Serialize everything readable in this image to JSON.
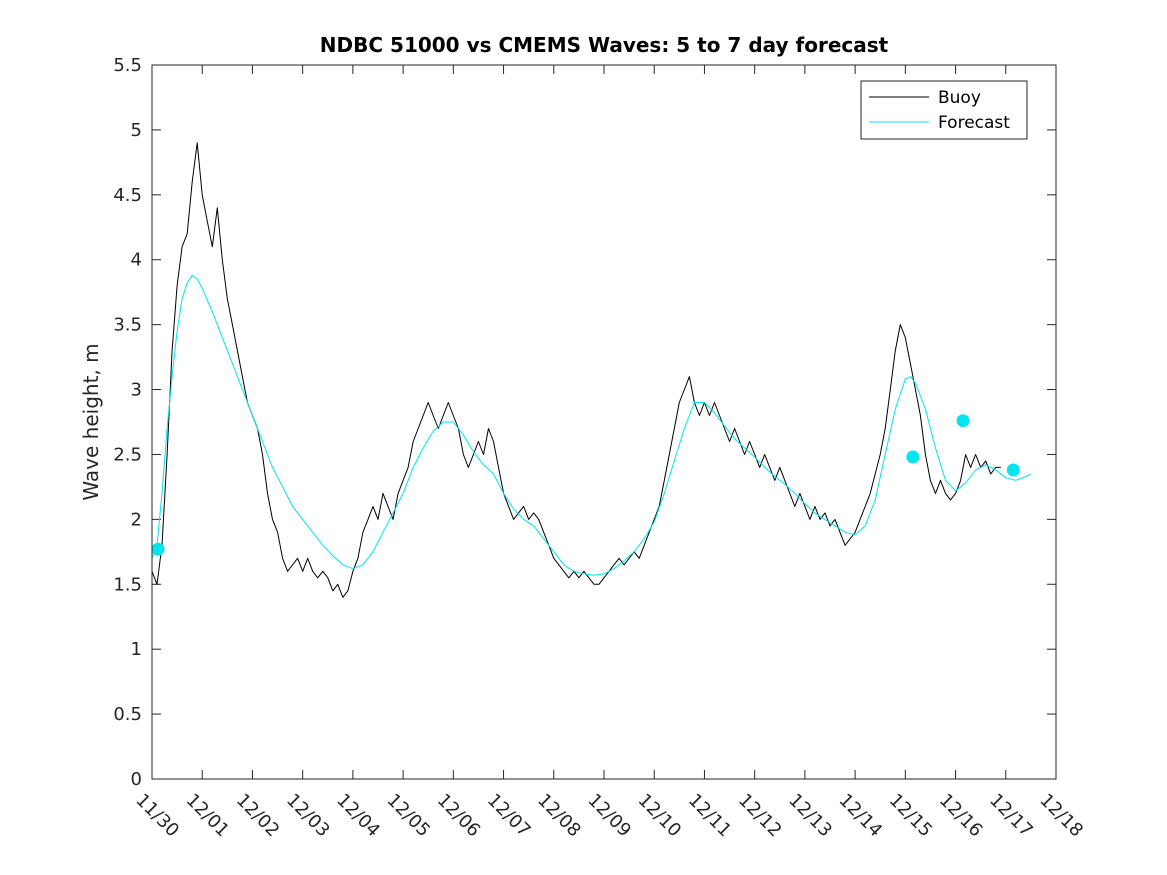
{
  "chart_data": {
    "type": "line",
    "title": "NDBC 51000 vs CMEMS Waves: 5 to 7 day forecast",
    "ylabel": "Wave height, m",
    "xlabel": "",
    "xlim": [
      "11/30",
      "12/18"
    ],
    "ylim": [
      0,
      5.5
    ],
    "x_ticks": [
      "11/30",
      "12/01",
      "12/02",
      "12/03",
      "12/04",
      "12/05",
      "12/06",
      "12/07",
      "12/08",
      "12/09",
      "12/10",
      "12/11",
      "12/12",
      "12/13",
      "12/14",
      "12/15",
      "12/16",
      "12/17",
      "12/18"
    ],
    "y_ticks": [
      "0",
      "0.5",
      "1",
      "1.5",
      "2",
      "2.5",
      "3",
      "3.5",
      "4",
      "4.5",
      "5",
      "5.5"
    ],
    "grid": false,
    "legend": {
      "placement": "top-right",
      "entries": [
        "Buoy",
        "Forecast"
      ]
    },
    "series": [
      {
        "name": "Buoy",
        "color": "#000000",
        "points": [
          [
            0.0,
            1.6
          ],
          [
            0.1,
            1.5
          ],
          [
            0.2,
            1.8
          ],
          [
            0.3,
            2.5
          ],
          [
            0.4,
            3.3
          ],
          [
            0.5,
            3.8
          ],
          [
            0.6,
            4.1
          ],
          [
            0.7,
            4.2
          ],
          [
            0.8,
            4.6
          ],
          [
            0.9,
            4.9
          ],
          [
            1.0,
            4.5
          ],
          [
            1.1,
            4.3
          ],
          [
            1.2,
            4.1
          ],
          [
            1.3,
            4.4
          ],
          [
            1.4,
            4.0
          ],
          [
            1.5,
            3.7
          ],
          [
            1.6,
            3.5
          ],
          [
            1.7,
            3.3
          ],
          [
            1.8,
            3.1
          ],
          [
            1.9,
            2.9
          ],
          [
            2.0,
            2.8
          ],
          [
            2.1,
            2.7
          ],
          [
            2.2,
            2.5
          ],
          [
            2.3,
            2.2
          ],
          [
            2.4,
            2.0
          ],
          [
            2.5,
            1.9
          ],
          [
            2.6,
            1.7
          ],
          [
            2.7,
            1.6
          ],
          [
            2.8,
            1.65
          ],
          [
            2.9,
            1.7
          ],
          [
            3.0,
            1.6
          ],
          [
            3.1,
            1.7
          ],
          [
            3.2,
            1.6
          ],
          [
            3.3,
            1.55
          ],
          [
            3.4,
            1.6
          ],
          [
            3.5,
            1.55
          ],
          [
            3.6,
            1.45
          ],
          [
            3.7,
            1.5
          ],
          [
            3.8,
            1.4
          ],
          [
            3.9,
            1.45
          ],
          [
            4.0,
            1.6
          ],
          [
            4.1,
            1.7
          ],
          [
            4.2,
            1.9
          ],
          [
            4.3,
            2.0
          ],
          [
            4.4,
            2.1
          ],
          [
            4.5,
            2.0
          ],
          [
            4.6,
            2.2
          ],
          [
            4.7,
            2.1
          ],
          [
            4.8,
            2.0
          ],
          [
            4.9,
            2.2
          ],
          [
            5.0,
            2.3
          ],
          [
            5.1,
            2.4
          ],
          [
            5.2,
            2.6
          ],
          [
            5.3,
            2.7
          ],
          [
            5.4,
            2.8
          ],
          [
            5.5,
            2.9
          ],
          [
            5.6,
            2.8
          ],
          [
            5.7,
            2.7
          ],
          [
            5.8,
            2.8
          ],
          [
            5.9,
            2.9
          ],
          [
            6.0,
            2.8
          ],
          [
            6.1,
            2.7
          ],
          [
            6.2,
            2.5
          ],
          [
            6.3,
            2.4
          ],
          [
            6.4,
            2.5
          ],
          [
            6.5,
            2.6
          ],
          [
            6.6,
            2.5
          ],
          [
            6.7,
            2.7
          ],
          [
            6.8,
            2.6
          ],
          [
            6.9,
            2.4
          ],
          [
            7.0,
            2.2
          ],
          [
            7.1,
            2.1
          ],
          [
            7.2,
            2.0
          ],
          [
            7.3,
            2.05
          ],
          [
            7.4,
            2.1
          ],
          [
            7.5,
            2.0
          ],
          [
            7.6,
            2.05
          ],
          [
            7.7,
            2.0
          ],
          [
            7.8,
            1.9
          ],
          [
            7.9,
            1.8
          ],
          [
            8.0,
            1.7
          ],
          [
            8.1,
            1.65
          ],
          [
            8.2,
            1.6
          ],
          [
            8.3,
            1.55
          ],
          [
            8.4,
            1.6
          ],
          [
            8.5,
            1.55
          ],
          [
            8.6,
            1.6
          ],
          [
            8.7,
            1.55
          ],
          [
            8.8,
            1.5
          ],
          [
            8.9,
            1.5
          ],
          [
            9.0,
            1.55
          ],
          [
            9.1,
            1.6
          ],
          [
            9.2,
            1.65
          ],
          [
            9.3,
            1.7
          ],
          [
            9.4,
            1.65
          ],
          [
            9.5,
            1.7
          ],
          [
            9.6,
            1.75
          ],
          [
            9.7,
            1.7
          ],
          [
            9.8,
            1.8
          ],
          [
            9.9,
            1.9
          ],
          [
            10.0,
            2.0
          ],
          [
            10.1,
            2.1
          ],
          [
            10.2,
            2.3
          ],
          [
            10.3,
            2.5
          ],
          [
            10.4,
            2.7
          ],
          [
            10.5,
            2.9
          ],
          [
            10.6,
            3.0
          ],
          [
            10.7,
            3.1
          ],
          [
            10.8,
            2.9
          ],
          [
            10.9,
            2.8
          ],
          [
            11.0,
            2.9
          ],
          [
            11.1,
            2.8
          ],
          [
            11.2,
            2.9
          ],
          [
            11.3,
            2.8
          ],
          [
            11.4,
            2.7
          ],
          [
            11.5,
            2.6
          ],
          [
            11.6,
            2.7
          ],
          [
            11.7,
            2.6
          ],
          [
            11.8,
            2.5
          ],
          [
            11.9,
            2.6
          ],
          [
            12.0,
            2.5
          ],
          [
            12.1,
            2.4
          ],
          [
            12.2,
            2.5
          ],
          [
            12.3,
            2.4
          ],
          [
            12.4,
            2.3
          ],
          [
            12.5,
            2.4
          ],
          [
            12.6,
            2.3
          ],
          [
            12.7,
            2.2
          ],
          [
            12.8,
            2.1
          ],
          [
            12.9,
            2.2
          ],
          [
            13.0,
            2.1
          ],
          [
            13.1,
            2.0
          ],
          [
            13.2,
            2.1
          ],
          [
            13.3,
            2.0
          ],
          [
            13.4,
            2.05
          ],
          [
            13.5,
            1.95
          ],
          [
            13.6,
            2.0
          ],
          [
            13.7,
            1.9
          ],
          [
            13.8,
            1.8
          ],
          [
            13.9,
            1.85
          ],
          [
            14.0,
            1.9
          ],
          [
            14.1,
            2.0
          ],
          [
            14.2,
            2.1
          ],
          [
            14.3,
            2.2
          ],
          [
            14.4,
            2.35
          ],
          [
            14.5,
            2.5
          ],
          [
            14.6,
            2.7
          ],
          [
            14.7,
            3.0
          ],
          [
            14.8,
            3.3
          ],
          [
            14.9,
            3.5
          ],
          [
            15.0,
            3.4
          ],
          [
            15.1,
            3.2
          ],
          [
            15.2,
            3.0
          ],
          [
            15.3,
            2.8
          ],
          [
            15.4,
            2.5
          ],
          [
            15.5,
            2.3
          ],
          [
            15.6,
            2.2
          ],
          [
            15.7,
            2.3
          ],
          [
            15.8,
            2.2
          ],
          [
            15.9,
            2.15
          ],
          [
            16.0,
            2.2
          ],
          [
            16.1,
            2.3
          ],
          [
            16.2,
            2.5
          ],
          [
            16.3,
            2.4
          ],
          [
            16.4,
            2.5
          ],
          [
            16.5,
            2.4
          ],
          [
            16.6,
            2.45
          ],
          [
            16.7,
            2.35
          ],
          [
            16.8,
            2.4
          ],
          [
            16.9,
            2.4
          ]
        ]
      },
      {
        "name": "Forecast",
        "color": "#00e5ee",
        "points": [
          [
            0.0,
            1.7
          ],
          [
            0.1,
            1.8
          ],
          [
            0.2,
            2.2
          ],
          [
            0.3,
            2.7
          ],
          [
            0.4,
            3.1
          ],
          [
            0.5,
            3.45
          ],
          [
            0.6,
            3.7
          ],
          [
            0.7,
            3.82
          ],
          [
            0.8,
            3.88
          ],
          [
            0.9,
            3.85
          ],
          [
            1.0,
            3.78
          ],
          [
            1.2,
            3.6
          ],
          [
            1.4,
            3.4
          ],
          [
            1.6,
            3.2
          ],
          [
            1.8,
            3.0
          ],
          [
            2.0,
            2.8
          ],
          [
            2.2,
            2.6
          ],
          [
            2.4,
            2.4
          ],
          [
            2.6,
            2.25
          ],
          [
            2.8,
            2.1
          ],
          [
            3.0,
            2.0
          ],
          [
            3.2,
            1.9
          ],
          [
            3.4,
            1.8
          ],
          [
            3.6,
            1.72
          ],
          [
            3.8,
            1.65
          ],
          [
            4.0,
            1.62
          ],
          [
            4.2,
            1.65
          ],
          [
            4.4,
            1.75
          ],
          [
            4.6,
            1.9
          ],
          [
            4.8,
            2.05
          ],
          [
            5.0,
            2.2
          ],
          [
            5.2,
            2.4
          ],
          [
            5.4,
            2.55
          ],
          [
            5.6,
            2.68
          ],
          [
            5.8,
            2.75
          ],
          [
            6.0,
            2.75
          ],
          [
            6.2,
            2.65
          ],
          [
            6.4,
            2.52
          ],
          [
            6.6,
            2.42
          ],
          [
            6.8,
            2.35
          ],
          [
            7.0,
            2.2
          ],
          [
            7.2,
            2.08
          ],
          [
            7.4,
            2.0
          ],
          [
            7.6,
            1.95
          ],
          [
            7.8,
            1.85
          ],
          [
            8.0,
            1.75
          ],
          [
            8.2,
            1.65
          ],
          [
            8.4,
            1.6
          ],
          [
            8.6,
            1.58
          ],
          [
            8.8,
            1.57
          ],
          [
            9.0,
            1.58
          ],
          [
            9.2,
            1.62
          ],
          [
            9.4,
            1.68
          ],
          [
            9.6,
            1.75
          ],
          [
            9.8,
            1.85
          ],
          [
            10.0,
            1.98
          ],
          [
            10.2,
            2.2
          ],
          [
            10.4,
            2.45
          ],
          [
            10.6,
            2.7
          ],
          [
            10.8,
            2.9
          ],
          [
            11.0,
            2.9
          ],
          [
            11.2,
            2.82
          ],
          [
            11.4,
            2.72
          ],
          [
            11.6,
            2.62
          ],
          [
            11.8,
            2.55
          ],
          [
            12.0,
            2.48
          ],
          [
            12.2,
            2.4
          ],
          [
            12.4,
            2.33
          ],
          [
            12.6,
            2.27
          ],
          [
            12.8,
            2.2
          ],
          [
            13.0,
            2.12
          ],
          [
            13.2,
            2.05
          ],
          [
            13.4,
            2.0
          ],
          [
            13.6,
            1.95
          ],
          [
            13.8,
            1.9
          ],
          [
            14.0,
            1.88
          ],
          [
            14.2,
            1.95
          ],
          [
            14.4,
            2.15
          ],
          [
            14.6,
            2.5
          ],
          [
            14.8,
            2.85
          ],
          [
            15.0,
            3.08
          ],
          [
            15.1,
            3.1
          ],
          [
            15.2,
            3.05
          ],
          [
            15.4,
            2.85
          ],
          [
            15.6,
            2.55
          ],
          [
            15.8,
            2.3
          ],
          [
            16.0,
            2.22
          ],
          [
            16.2,
            2.28
          ],
          [
            16.4,
            2.38
          ],
          [
            16.6,
            2.42
          ],
          [
            16.8,
            2.38
          ],
          [
            17.0,
            2.32
          ],
          [
            17.2,
            2.3
          ],
          [
            17.4,
            2.33
          ],
          [
            17.5,
            2.35
          ]
        ]
      }
    ],
    "markers": {
      "color": "#00e5ee",
      "points": [
        [
          0.12,
          1.77
        ],
        [
          15.15,
          2.48
        ],
        [
          16.15,
          2.76
        ],
        [
          17.15,
          2.38
        ]
      ]
    }
  }
}
